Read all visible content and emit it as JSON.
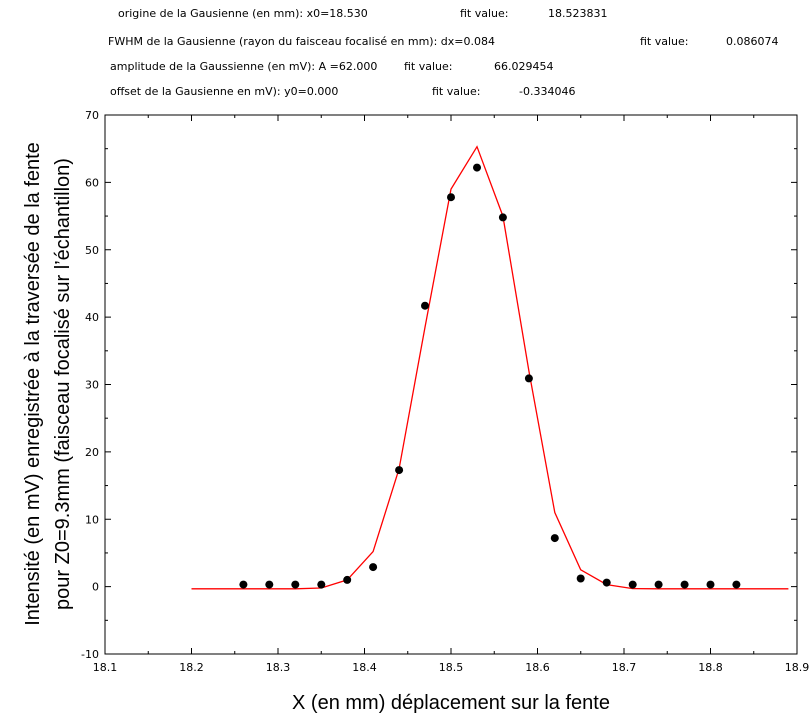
{
  "chart_data": {
    "type": "scatter",
    "annotations": [
      {
        "label": "origine de la Gausienne (en mm): x0=18.530",
        "fit_label": "fit value:",
        "fit_value": "18.523831"
      },
      {
        "label": "FWHM de la Gausienne (rayon du faisceau focalisé en mm): dx=0.084",
        "fit_label": "fit value:",
        "fit_value": "0.086074"
      },
      {
        "label": "amplitude de la Gaussienne (en mV): A =62.000",
        "fit_label": "fit value:",
        "fit_value": "66.029454"
      },
      {
        "label": "offset de la Gausienne en mV): y0=0.000",
        "fit_label": "fit value:",
        "fit_value": "-0.334046"
      }
    ],
    "xlabel": "X (en mm) déplacement sur la fente",
    "ylabel_lines": [
      "Intensité (en mV) enregistrée à la traversée de la fente",
      "pour Z0=9.3mm (faisceau focalisé sur l’échantillon)"
    ],
    "xlim": [
      18.1,
      18.9
    ],
    "ylim": [
      -10,
      70
    ],
    "x_ticks": [
      "18.1",
      "18.2",
      "18.3",
      "18.4",
      "18.5",
      "18.6",
      "18.7",
      "18.8",
      "18.9"
    ],
    "y_ticks": [
      "-10",
      "0",
      "10",
      "20",
      "30",
      "40",
      "50",
      "60",
      "70"
    ],
    "grid": false,
    "series": [
      {
        "kind": "scatter",
        "color": "#000000",
        "x": [
          18.26,
          18.29,
          18.32,
          18.35,
          18.38,
          18.41,
          18.44,
          18.47,
          18.5,
          18.53,
          18.56,
          18.59,
          18.62,
          18.65,
          18.68,
          18.71,
          18.74,
          18.77,
          18.8,
          18.83
        ],
        "y": [
          0.3,
          0.3,
          0.3,
          0.3,
          1.0,
          2.9,
          17.3,
          41.7,
          57.8,
          62.2,
          54.8,
          30.9,
          7.2,
          1.2,
          0.6,
          0.3,
          0.3,
          0.3,
          0.3,
          0.3
        ]
      },
      {
        "kind": "line",
        "color": "#ff0000",
        "x": [
          18.2,
          18.23,
          18.26,
          18.29,
          18.32,
          18.35,
          18.38,
          18.41,
          18.44,
          18.47,
          18.5,
          18.53,
          18.56,
          18.59,
          18.62,
          18.65,
          18.68,
          18.71,
          18.74,
          18.77,
          18.8,
          18.83,
          18.86,
          18.89
        ],
        "y": [
          -0.33,
          -0.33,
          -0.33,
          -0.33,
          -0.33,
          -0.2,
          1.0,
          5.2,
          17.5,
          38.5,
          59.0,
          65.3,
          55.0,
          32.0,
          11.0,
          2.5,
          0.3,
          -0.3,
          -0.33,
          -0.33,
          -0.33,
          -0.33,
          -0.33,
          -0.33
        ]
      }
    ]
  }
}
